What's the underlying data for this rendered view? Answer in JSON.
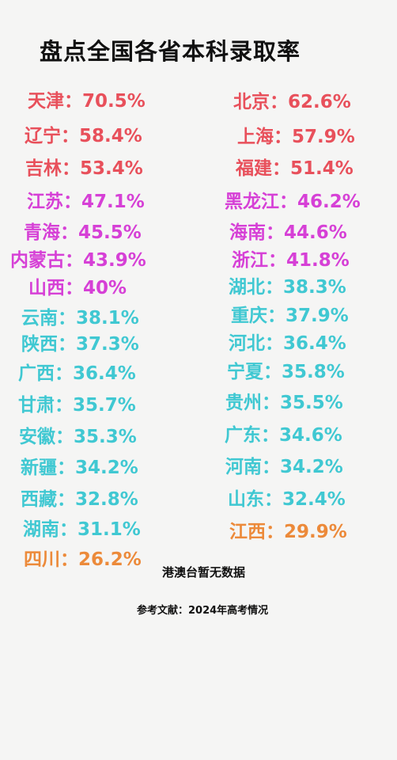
{
  "title": "盘点全国各省本科录取率",
  "colors": {
    "red": "#e8505b",
    "magenta": "#d640d6",
    "cyan": "#40c8d2",
    "orange": "#ec8a3a"
  },
  "rows": [
    {
      "left": "天津：70.5%",
      "right": "北京：62.6%"
    },
    {
      "left": "辽宁：58.4%",
      "right": "上海：57.9%"
    },
    {
      "left": "吉林：53.4%",
      "right": "福建：51.4%"
    },
    {
      "left": "江苏：47.1%",
      "right": "黑龙江：46.2%"
    },
    {
      "left": "青海：45.5%",
      "right": "海南：44.6%"
    },
    {
      "left": "内蒙古：43.9%",
      "right": "浙江：41.8%"
    },
    {
      "left": "山西：40%",
      "right": "湖北：38.3%"
    },
    {
      "left": "云南：38.1%",
      "right": "重庆：37.9%"
    },
    {
      "left": "陕西：37.3%",
      "right": "河北：36.4%"
    },
    {
      "left": "广西：36.4%",
      "right": "宁夏：35.8%"
    },
    {
      "left": "甘肃：35.7%",
      "right": "贵州：35.5%"
    },
    {
      "left": "安徽：35.3%",
      "right": "广东：34.6%"
    },
    {
      "left": "新疆：34.2%",
      "right": "河南：34.2%"
    },
    {
      "left": "西藏：32.8%",
      "right": "山东：32.4%"
    },
    {
      "left": "湖南：31.1%",
      "right": "江西：29.9%"
    },
    {
      "left": "四川：26.2%"
    }
  ],
  "note": "港澳台暂无数据",
  "reference": "参考文献：2024年高考情况"
}
